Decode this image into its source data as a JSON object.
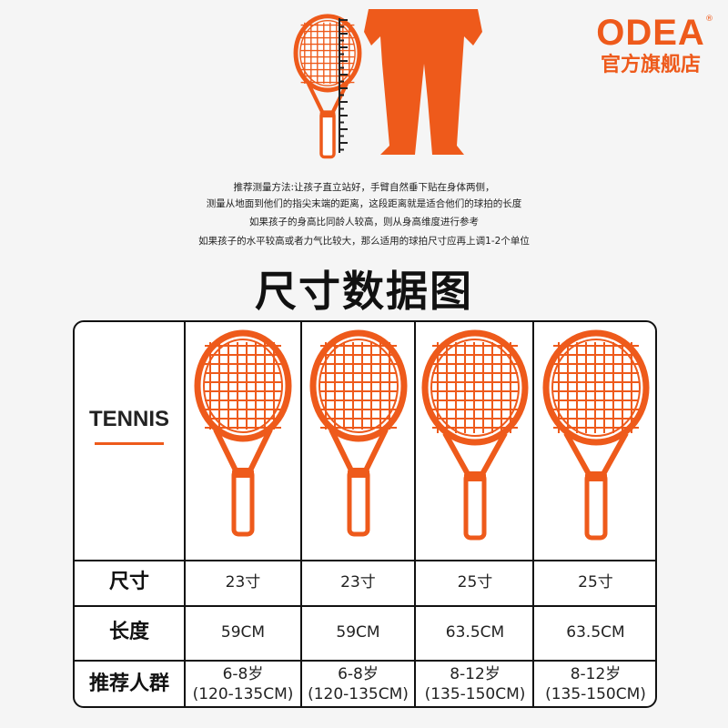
{
  "brand": {
    "logo": "ODEA",
    "registered": "®",
    "store": "官方旗舰店",
    "color": "#ee5a1b"
  },
  "instructions": [
    "推荐测量方法:让孩子直立站好，手臂自然垂下贴在身体两侧，",
    "测量从地面到他们的指尖末端的距离，这段距离就是适合他们的球拍的长度",
    "如果孩子的身高比同龄人较高，则从身高维度进行参考",
    "如果孩子的水平较高或者力气比较大，那么适用的球拍尺寸应再上调1-2个单位"
  ],
  "title": "尺寸数据图",
  "table": {
    "header": "TENNIS",
    "row_labels": [
      "尺寸",
      "长度",
      "推荐人群"
    ],
    "columns": [
      {
        "size": "23寸",
        "length": "59CM",
        "age": "6-8岁",
        "height": "(120-135CM)"
      },
      {
        "size": "23寸",
        "length": "59CM",
        "age": "6-8岁",
        "height": "(120-135CM)"
      },
      {
        "size": "25寸",
        "length": "63.5CM",
        "age": "8-12岁",
        "height": "(135-150CM)"
      },
      {
        "size": "25寸",
        "length": "63.5CM",
        "age": "8-12岁",
        "height": "(135-150CM)"
      }
    ]
  }
}
